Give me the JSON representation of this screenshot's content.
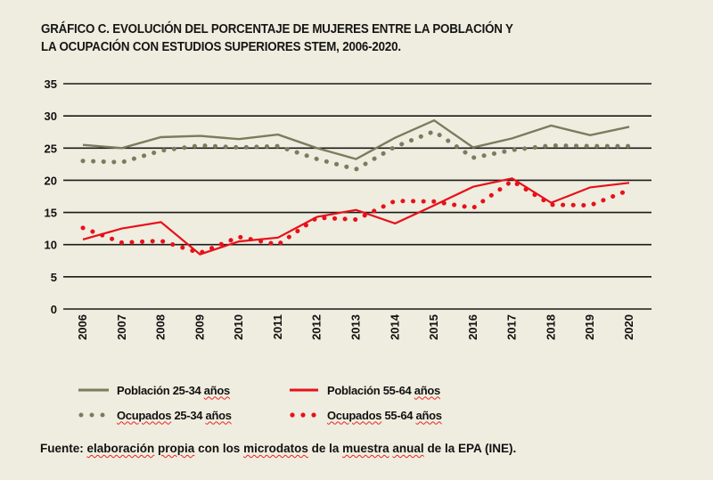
{
  "title": {
    "line1": "GRÁFICO C. EVOLUCIÓN DEL PORCENTAJE DE MUJERES ENTRE LA POBLACIÓN Y",
    "line2": "LA OCUPACIÓN CON ESTUDIOS SUPERIORES STEM, 2006-2020."
  },
  "colors": {
    "background": "#efeddf",
    "olive": "#7b7b5e",
    "red": "#e8101a",
    "grid": "#1a1a1a"
  },
  "chart_data": {
    "type": "line",
    "title": "GRÁFICO C. EVOLUCIÓN DEL PORCENTAJE DE MUJERES ENTRE LA POBLACIÓN Y LA OCUPACIÓN CON ESTUDIOS SUPERIORES STEM, 2006-2020.",
    "xlabel": "",
    "ylabel": "",
    "ylim": [
      0,
      35
    ],
    "yticks": [
      "0",
      "5",
      "10",
      "15",
      "20",
      "25",
      "30",
      "35"
    ],
    "grid": true,
    "legend_position": "bottom",
    "categories": [
      "2006",
      "2007",
      "2008",
      "2009",
      "2010",
      "2011",
      "2012",
      "2013",
      "2014",
      "2015",
      "2016",
      "2017",
      "2018",
      "2019",
      "2020"
    ],
    "series": [
      {
        "name": "Población 25-34 años",
        "style": "solid",
        "color": "#7b7b5e",
        "values": [
          25.5,
          25.0,
          26.7,
          26.9,
          26.4,
          27.1,
          25.0,
          23.3,
          26.6,
          29.3,
          25.1,
          26.5,
          28.5,
          27.0,
          28.3
        ]
      },
      {
        "name": "Ocupados 25-34 años",
        "style": "dotted",
        "color": "#7b7b5e",
        "values": [
          23.0,
          22.8,
          24.6,
          25.4,
          25.1,
          25.3,
          23.3,
          21.7,
          25.2,
          27.6,
          23.5,
          24.7,
          25.4,
          25.3,
          25.3
        ]
      },
      {
        "name": "Población 55-64 años",
        "style": "solid",
        "color": "#e8101a",
        "values": [
          10.8,
          12.5,
          13.5,
          8.5,
          10.5,
          11.1,
          14.3,
          15.4,
          13.3,
          16.1,
          19.0,
          20.3,
          16.5,
          18.9,
          19.6
        ]
      },
      {
        "name": "Ocupados 55-64 años",
        "style": "dotted",
        "color": "#e8101a",
        "values": [
          12.6,
          10.3,
          10.6,
          8.7,
          11.2,
          10.0,
          14.2,
          13.9,
          16.8,
          16.7,
          15.7,
          19.9,
          16.2,
          16.1,
          18.5
        ]
      }
    ]
  },
  "legend": [
    {
      "label_pre": "Población 25-34 ",
      "label_squig": "años",
      "style": "solid",
      "color": "#7b7b5e"
    },
    {
      "label_pre": "Población 55-64 ",
      "label_squig": "años",
      "style": "solid",
      "color": "#e8101a"
    },
    {
      "label_squig_first": "Ocupados",
      "label_pre": " 25-34 ",
      "label_squig": "años",
      "style": "dotted",
      "color": "#7b7b5e"
    },
    {
      "label_squig_first": "Ocupados",
      "label_pre": " 55-64 ",
      "label_squig": "años",
      "style": "dotted",
      "color": "#e8101a"
    }
  ],
  "source": {
    "p1": "Fuente: ",
    "s1": "elaboración",
    "p2": " ",
    "s2": "propia",
    "p3": " con los ",
    "s3": "microdatos",
    "p4": " de la ",
    "s4": "muestra",
    "p5": " ",
    "s5": "anual",
    "p6": " de la EPA (INE)."
  }
}
